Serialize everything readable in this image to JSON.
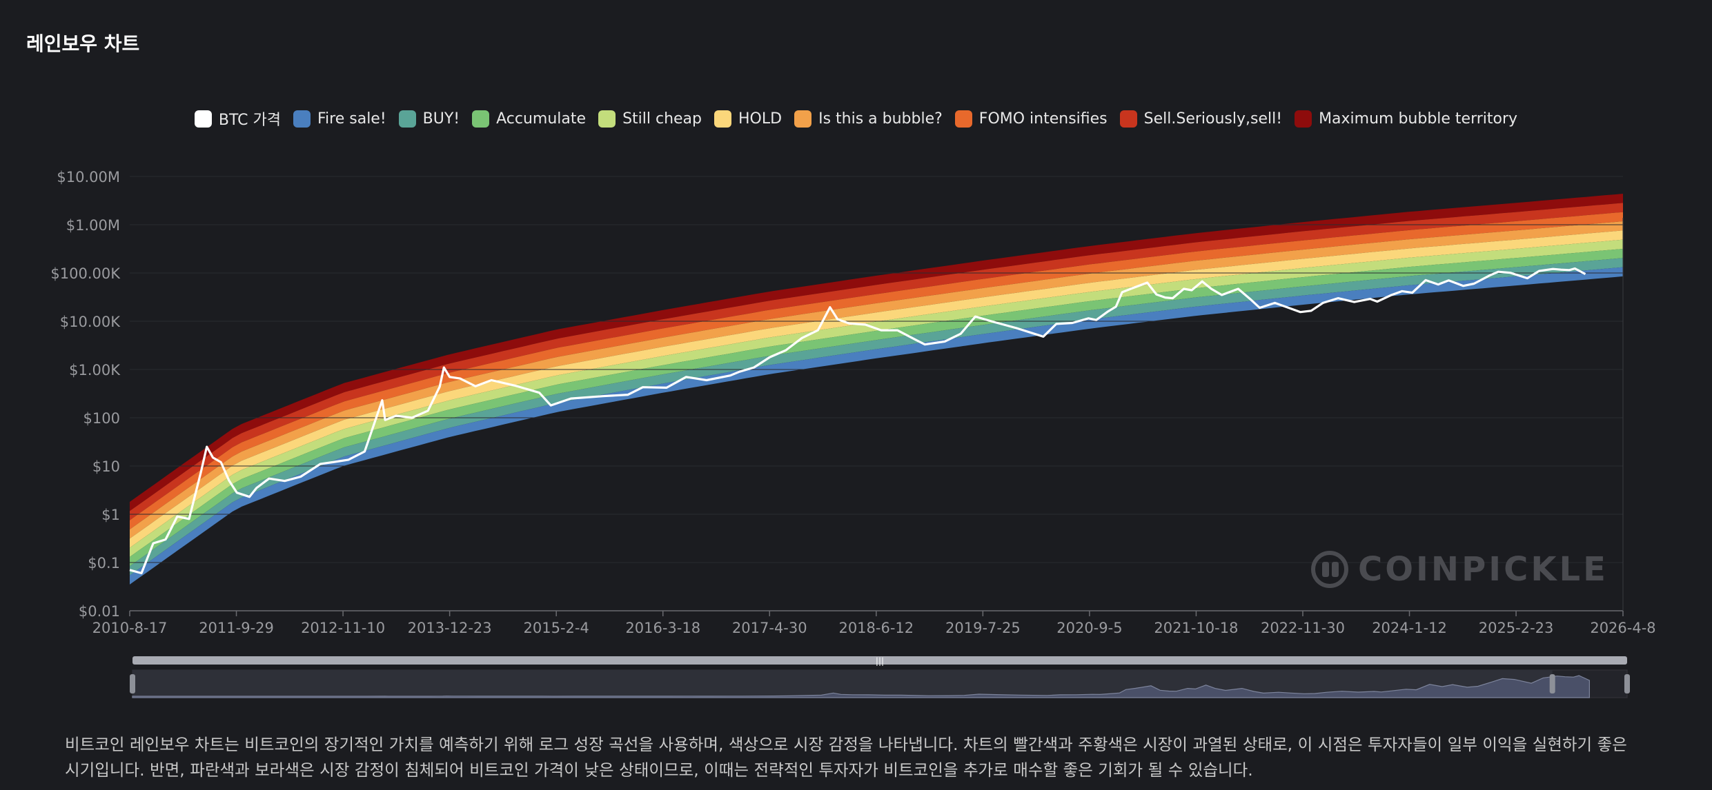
{
  "page": {
    "title": "레인보우 차트"
  },
  "watermark": {
    "text": "COINPICKLE"
  },
  "description": "비트코인 레인보우 차트는 비트코인의 장기적인 가치를 예측하기 위해 로그 성장 곡선을 사용하며, 색상으로 시장 감정을 나타냅니다. 차트의 빨간색과 주황색은 시장이 과열된 상태로, 이 시점은 투자자들이 일부 이익을 실현하기 좋은 시기입니다. 반면, 파란색과 보라색은 시장 감정이 침체되어 비트코인 가격이 낮은 상태이므로, 이때는 전략적인 투자자가 비트코인을 추가로 매수할 좋은 기회가 될 수 있습니다.",
  "legend": [
    {
      "label": "BTC 가격",
      "color": "#ffffff"
    },
    {
      "label": "Fire sale!",
      "color": "#4a7fbf"
    },
    {
      "label": "BUY!",
      "color": "#5aa497"
    },
    {
      "label": "Accumulate",
      "color": "#7ac474"
    },
    {
      "label": "Still cheap",
      "color": "#c3dd7c"
    },
    {
      "label": "HOLD",
      "color": "#fbd77b"
    },
    {
      "label": "Is this a bubble?",
      "color": "#f2a14a"
    },
    {
      "label": "FOMO intensifies",
      "color": "#e8692c"
    },
    {
      "label": "Sell.Seriously,sell!",
      "color": "#c8351e"
    },
    {
      "label": "Maximum bubble territory",
      "color": "#8e0c0c"
    }
  ],
  "chart_data": {
    "type": "area",
    "y_scale": "log",
    "ylim": [
      0.01,
      10000000
    ],
    "y_ticks": [
      {
        "value": 0.01,
        "label": "$0.01"
      },
      {
        "value": 0.1,
        "label": "$0.1"
      },
      {
        "value": 1,
        "label": "$1"
      },
      {
        "value": 10,
        "label": "$10"
      },
      {
        "value": 100,
        "label": "$100"
      },
      {
        "value": 1000,
        "label": "$1.00K"
      },
      {
        "value": 10000,
        "label": "$10.00K"
      },
      {
        "value": 100000,
        "label": "$100.00K"
      },
      {
        "value": 1000000,
        "label": "$1.00M"
      },
      {
        "value": 10000000,
        "label": "$10.00M"
      }
    ],
    "xlim": [
      "2010-8-17",
      "2026-4-8"
    ],
    "x_ticks": [
      "2010-8-17",
      "2011-9-29",
      "2012-11-10",
      "2013-12-23",
      "2015-2-4",
      "2016-3-18",
      "2017-4-30",
      "2018-6-12",
      "2019-7-25",
      "2020-9-5",
      "2021-10-18",
      "2022-11-30",
      "2024-1-12",
      "2025-2-23",
      "2026-4-8"
    ],
    "band_x": [
      "2010-8-17",
      "2011-9-29",
      "2012-11-10",
      "2013-12-23",
      "2015-2-4",
      "2016-3-18",
      "2017-4-30",
      "2018-6-12",
      "2019-7-25",
      "2020-9-5",
      "2021-10-18",
      "2022-11-30",
      "2024-1-12",
      "2025-2-23",
      "2026-4-8"
    ],
    "band_lower": [
      0.035,
      1.3,
      10,
      40,
      130,
      330,
      800,
      1700,
      3500,
      7000,
      13000,
      22000,
      36000,
      55000,
      85000
    ],
    "band_step": 1.55,
    "series": [
      {
        "name": "BTC 가격",
        "x": [
          "2010-8-17",
          "2010-10-1",
          "2010-11-15",
          "2011-1-1",
          "2011-2-15",
          "2011-4-1",
          "2011-5-15",
          "2011-6-8",
          "2011-7-1",
          "2011-8-1",
          "2011-9-1",
          "2011-10-1",
          "2011-11-18",
          "2011-12-15",
          "2012-2-1",
          "2012-4-1",
          "2012-6-1",
          "2012-8-15",
          "2012-10-1",
          "2012-12-1",
          "2013-2-1",
          "2013-4-9",
          "2013-4-20",
          "2013-6-1",
          "2013-8-1",
          "2013-10-1",
          "2013-11-15",
          "2013-12-1",
          "2013-12-23",
          "2014-2-1",
          "2014-4-1",
          "2014-6-1",
          "2014-9-1",
          "2014-12-1",
          "2015-1-14",
          "2015-4-1",
          "2015-8-1",
          "2015-11-5",
          "2016-1-1",
          "2016-4-1",
          "2016-6-15",
          "2016-9-1",
          "2016-12-1",
          "2017-1-5",
          "2017-3-1",
          "2017-5-1",
          "2017-7-1",
          "2017-9-1",
          "2017-11-1",
          "2017-12-17",
          "2018-1-15",
          "2018-3-1",
          "2018-5-1",
          "2018-7-1",
          "2018-9-1",
          "2018-11-15",
          "2018-12-15",
          "2019-3-1",
          "2019-5-1",
          "2019-6-26",
          "2019-9-1",
          "2019-12-1",
          "2020-3-12",
          "2020-5-1",
          "2020-7-1",
          "2020-9-1",
          "2020-10-1",
          "2020-11-15",
          "2020-12-15",
          "2021-1-8",
          "2021-2-15",
          "2021-4-14",
          "2021-5-19",
          "2021-6-22",
          "2021-7-20",
          "2021-9-1",
          "2021-10-1",
          "2021-11-10",
          "2021-12-15",
          "2022-1-24",
          "2022-3-28",
          "2022-5-12",
          "2022-6-18",
          "2022-8-15",
          "2022-10-1",
          "2022-11-21",
          "2023-1-1",
          "2023-2-15",
          "2023-4-14",
          "2023-6-15",
          "2023-8-15",
          "2023-9-11",
          "2023-11-1",
          "2023-12-15",
          "2024-1-23",
          "2024-3-14",
          "2024-5-1",
          "2024-6-10",
          "2024-8-5",
          "2024-9-15",
          "2024-11-12",
          "2024-12-17",
          "2025-2-1",
          "2025-4-7",
          "2025-5-22",
          "2025-7-14",
          "2025-8-14",
          "2025-9-15",
          "2025-10-6",
          "2025-11-15"
        ],
        "values": [
          0.07,
          0.06,
          0.25,
          0.3,
          0.9,
          0.8,
          7,
          25,
          15,
          12,
          5,
          2.8,
          2.3,
          3.5,
          5.5,
          4.9,
          6,
          11,
          12,
          13.5,
          20,
          230,
          90,
          110,
          100,
          140,
          440,
          1100,
          700,
          650,
          450,
          600,
          460,
          330,
          180,
          250,
          280,
          300,
          430,
          420,
          700,
          600,
          750,
          900,
          1100,
          1800,
          2500,
          4500,
          6500,
          19500,
          11000,
          9000,
          8500,
          6500,
          6500,
          4000,
          3300,
          3800,
          5500,
          12500,
          9800,
          7200,
          4800,
          8800,
          9200,
          11500,
          10600,
          16000,
          20000,
          40000,
          48000,
          63000,
          36000,
          31000,
          30000,
          47000,
          44000,
          67000,
          47000,
          35000,
          47000,
          29000,
          19000,
          24000,
          19500,
          15500,
          16500,
          24000,
          30000,
          25000,
          29000,
          25500,
          34500,
          42000,
          39000,
          71000,
          58000,
          70000,
          54000,
          60000,
          88000,
          106000,
          101000,
          78000,
          110000,
          121000,
          117000,
          115000,
          124000,
          95000
        ]
      }
    ]
  },
  "zoom": {
    "start": 0,
    "end": 95
  }
}
